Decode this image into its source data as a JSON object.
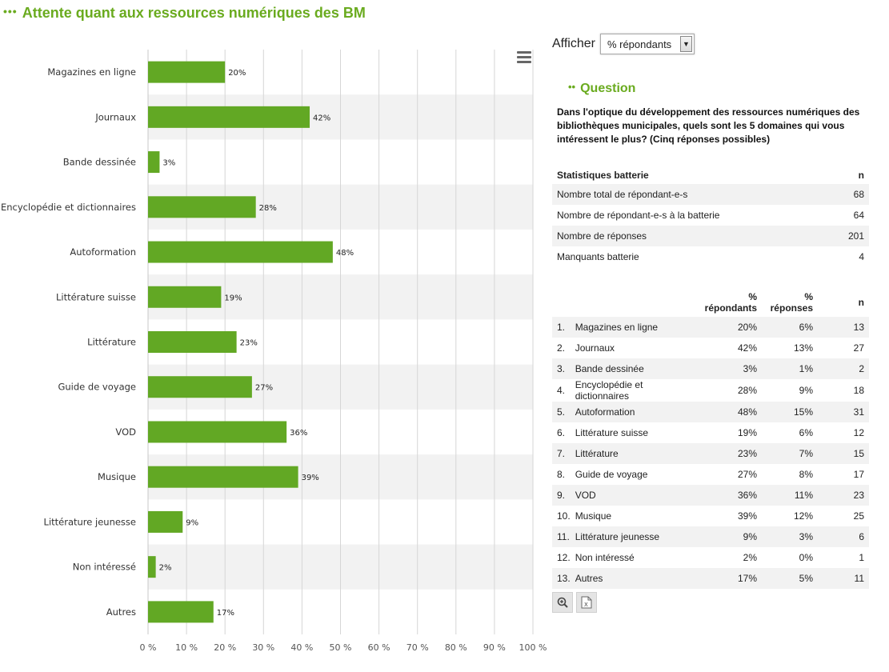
{
  "page": {
    "title": "Attente quant aux ressources numériques des BM",
    "title_dots": "•••"
  },
  "controls": {
    "afficher_label": "Afficher",
    "selected": "% répondants"
  },
  "question": {
    "heading": "Question",
    "heading_dots": "••",
    "text": "Dans l'optique du développement des ressources numériques des bibliothèques municipales, quels sont les 5 domaines qui vous intéressent le plus? (Cinq réponses possibles)"
  },
  "stats": {
    "header": {
      "label": "Statistiques batterie",
      "n": "n"
    },
    "rows": [
      {
        "label": "Nombre total de répondant-e-s",
        "value": "68"
      },
      {
        "label": "Nombre de répondant-e-s à la batterie",
        "value": "64"
      },
      {
        "label": "Nombre de réponses",
        "value": "201"
      },
      {
        "label": "Manquants batterie",
        "value": "4"
      }
    ]
  },
  "table": {
    "headers": {
      "pct_resp_line1": "%",
      "pct_resp_line2": "répondants",
      "pct_rep_line1": "%",
      "pct_rep_line2": "réponses",
      "n": "n"
    },
    "rows": [
      {
        "rank": "1.",
        "label": "Magazines en ligne",
        "pct_resp": "20%",
        "pct_rep": "6%",
        "n": "13"
      },
      {
        "rank": "2.",
        "label": "Journaux",
        "pct_resp": "42%",
        "pct_rep": "13%",
        "n": "27"
      },
      {
        "rank": "3.",
        "label": "Bande dessinée",
        "pct_resp": "3%",
        "pct_rep": "1%",
        "n": "2"
      },
      {
        "rank": "4.",
        "label": "Encyclopédie et dictionnaires",
        "pct_resp": "28%",
        "pct_rep": "9%",
        "n": "18"
      },
      {
        "rank": "5.",
        "label": "Autoformation",
        "pct_resp": "48%",
        "pct_rep": "15%",
        "n": "31"
      },
      {
        "rank": "6.",
        "label": "Littérature suisse",
        "pct_resp": "19%",
        "pct_rep": "6%",
        "n": "12"
      },
      {
        "rank": "7.",
        "label": "Littérature",
        "pct_resp": "23%",
        "pct_rep": "7%",
        "n": "15"
      },
      {
        "rank": "8.",
        "label": "Guide de voyage",
        "pct_resp": "27%",
        "pct_rep": "8%",
        "n": "17"
      },
      {
        "rank": "9.",
        "label": "VOD",
        "pct_resp": "36%",
        "pct_rep": "11%",
        "n": "23"
      },
      {
        "rank": "10.",
        "label": "Musique",
        "pct_resp": "39%",
        "pct_rep": "12%",
        "n": "25"
      },
      {
        "rank": "11.",
        "label": "Littérature jeunesse",
        "pct_resp": "9%",
        "pct_rep": "3%",
        "n": "6"
      },
      {
        "rank": "12.",
        "label": "Non intéressé",
        "pct_resp": "2%",
        "pct_rep": "0%",
        "n": "1"
      },
      {
        "rank": "13.",
        "label": "Autres",
        "pct_resp": "17%",
        "pct_rep": "5%",
        "n": "11"
      }
    ]
  },
  "icons": {
    "menu": "hamburger-menu-icon",
    "zoom": "zoom-in-icon",
    "export": "excel-export-icon"
  },
  "colors": {
    "accent": "#6aab1f",
    "bar": "#62a824",
    "stripe": "#f2f2f2"
  },
  "chart_data": {
    "type": "bar",
    "orientation": "horizontal",
    "categories": [
      "Magazines en ligne",
      "Journaux",
      "Bande dessinée",
      "Encyclopédie et dictionnaires",
      "Autoformation",
      "Littérature suisse",
      "Littérature",
      "Guide de voyage",
      "VOD",
      "Musique",
      "Littérature jeunesse",
      "Non intéressé",
      "Autres"
    ],
    "values": [
      20,
      42,
      3,
      28,
      48,
      19,
      23,
      27,
      36,
      39,
      9,
      2,
      17
    ],
    "value_labels": [
      "20%",
      "42%",
      "3%",
      "28%",
      "48%",
      "19%",
      "23%",
      "27%",
      "36%",
      "39%",
      "9%",
      "2%",
      "17%"
    ],
    "xlim": [
      0,
      100
    ],
    "xticks": [
      0,
      10,
      20,
      30,
      40,
      50,
      60,
      70,
      80,
      90,
      100
    ],
    "xtick_labels": [
      "0 %",
      "10 %",
      "20 %",
      "30 %",
      "40 %",
      "50 %",
      "60 %",
      "70 %",
      "80 %",
      "90 %",
      "100 %"
    ],
    "grid": true,
    "legend": "none"
  }
}
